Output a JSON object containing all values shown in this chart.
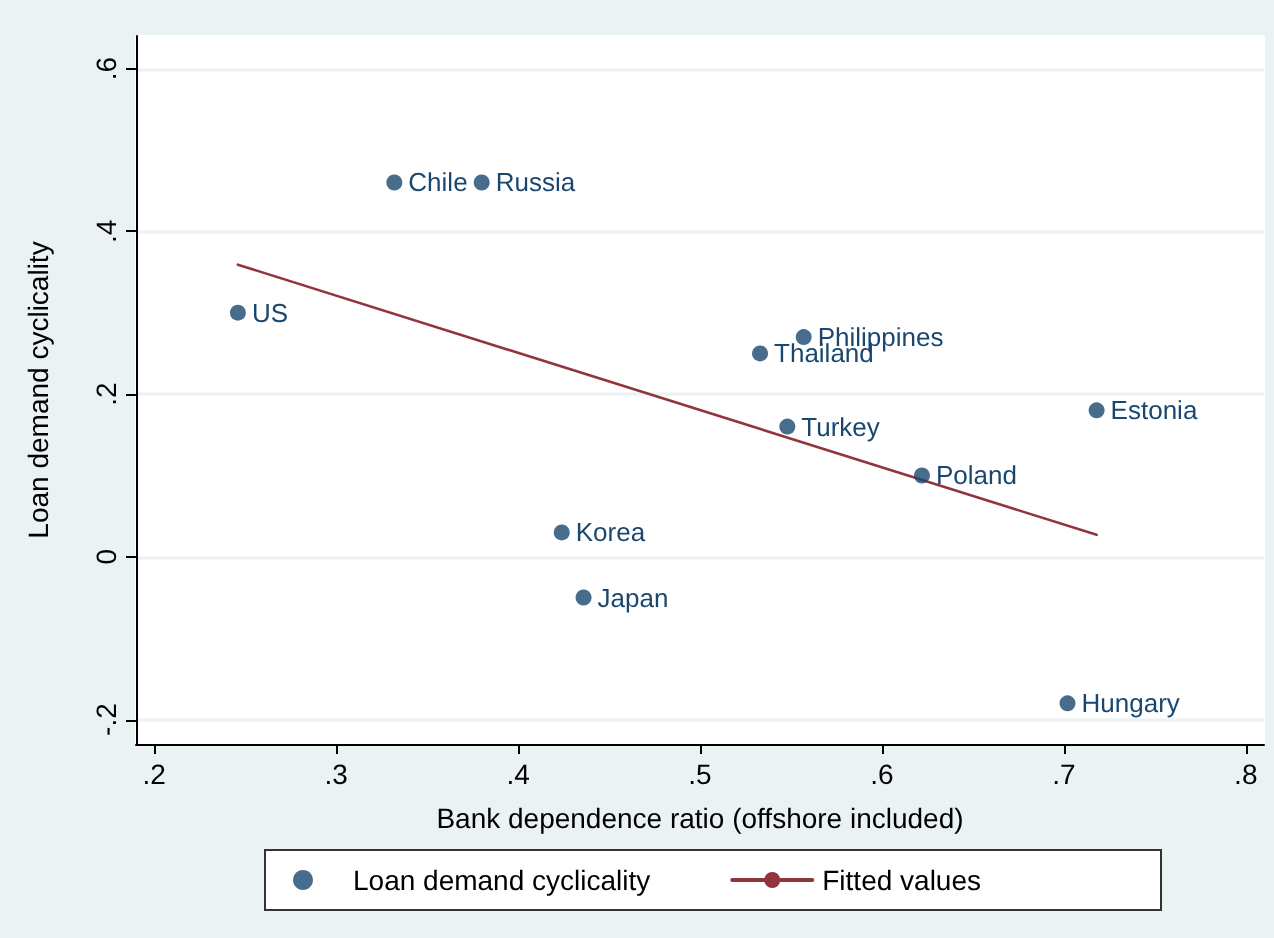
{
  "chart_data": {
    "type": "scatter",
    "xlabel": "Bank dependence ratio (offshore included)",
    "ylabel": "Loan demand cyclicality",
    "xlim": [
      0.19,
      0.81
    ],
    "ylim": [
      -0.23,
      0.64
    ],
    "xticks": [
      {
        "value": 0.2,
        "label": ".2"
      },
      {
        "value": 0.3,
        "label": ".3"
      },
      {
        "value": 0.4,
        "label": ".4"
      },
      {
        "value": 0.5,
        "label": ".5"
      },
      {
        "value": 0.6,
        "label": ".6"
      },
      {
        "value": 0.7,
        "label": ".7"
      },
      {
        "value": 0.8,
        "label": ".8"
      }
    ],
    "yticks": [
      {
        "value": -0.2,
        "label": "-.2"
      },
      {
        "value": 0,
        "label": "0"
      },
      {
        "value": 0.2,
        "label": ".2"
      },
      {
        "value": 0.4,
        "label": ".4"
      },
      {
        "value": 0.6,
        "label": ".6"
      }
    ],
    "grid": "y",
    "legend": "bottom",
    "series": [
      {
        "name": "Loan demand cyclicality",
        "marker": "circle",
        "color": "#1a476f",
        "x": [
          0.332,
          0.38,
          0.246,
          0.557,
          0.533,
          0.548,
          0.718,
          0.622,
          0.424,
          0.436,
          0.702
        ],
        "values": [
          0.46,
          0.46,
          0.3,
          0.27,
          0.25,
          0.16,
          0.18,
          0.1,
          0.03,
          -0.05,
          -0.18
        ]
      },
      {
        "name": "Fitted values",
        "type": "line",
        "color": "#90353b",
        "x": [
          0.246,
          0.718
        ],
        "values": [
          0.359,
          0.027
        ]
      }
    ],
    "annotations": [
      {
        "text": "Chile",
        "x": 0.332,
        "y": 0.46
      },
      {
        "text": "Russia",
        "x": 0.38,
        "y": 0.46
      },
      {
        "text": "US",
        "x": 0.246,
        "y": 0.3
      },
      {
        "text": "Philippines",
        "x": 0.557,
        "y": 0.27
      },
      {
        "text": "Thailand",
        "x": 0.533,
        "y": 0.25
      },
      {
        "text": "Turkey",
        "x": 0.548,
        "y": 0.16
      },
      {
        "text": "Estonia",
        "x": 0.718,
        "y": 0.18
      },
      {
        "text": "Poland",
        "x": 0.622,
        "y": 0.1
      },
      {
        "text": "Korea",
        "x": 0.424,
        "y": 0.03
      },
      {
        "text": "Japan",
        "x": 0.436,
        "y": -0.05
      },
      {
        "text": "Hungary",
        "x": 0.702,
        "y": -0.18
      }
    ]
  }
}
